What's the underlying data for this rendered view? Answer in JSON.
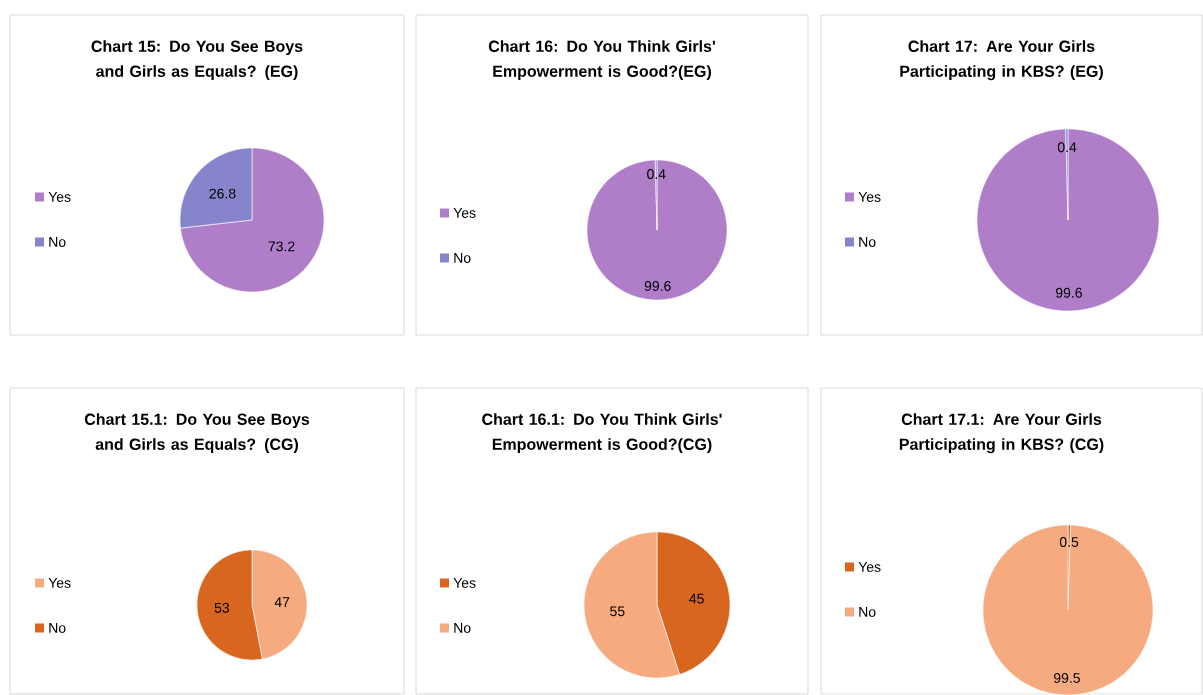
{
  "chart_data": [
    {
      "type": "pie",
      "title": "Chart 15: Do You See Boys and Girls as Equals? (EG)",
      "categories": [
        "Yes",
        "No"
      ],
      "values": [
        73.2,
        26.8
      ],
      "colors": [
        "#b07ec9",
        "#8685cc"
      ],
      "data_labels": true,
      "legend": "left"
    },
    {
      "type": "pie",
      "title": "Chart 16: Do You Think Girls' Empowerment is Good?(EG)",
      "categories": [
        "Yes",
        "No"
      ],
      "values": [
        99.6,
        0.4
      ],
      "colors": [
        "#b07ec9",
        "#8685cc"
      ],
      "data_labels": true,
      "legend": "left"
    },
    {
      "type": "pie",
      "title": "Chart 17: Are Your Girls Participating in KBS? (EG)",
      "categories": [
        "Yes",
        "No"
      ],
      "values": [
        99.6,
        0.4
      ],
      "colors": [
        "#b07ec9",
        "#8685cc"
      ],
      "data_labels": true,
      "legend": "left"
    },
    {
      "type": "pie",
      "title": "Chart 15.1: Do You See Boys and Girls as Equals? (CG)",
      "categories": [
        "Yes",
        "No"
      ],
      "values": [
        47,
        53
      ],
      "colors": [
        "#f5aa80",
        "#d9661f"
      ],
      "data_labels": true,
      "legend": "left"
    },
    {
      "type": "pie",
      "title": "Chart 16.1: Do You Think Girls' Empowerment is Good?(CG)",
      "categories": [
        "Yes",
        "No"
      ],
      "values": [
        45,
        55
      ],
      "colors": [
        "#d9661f",
        "#f5aa80"
      ],
      "data_labels": true,
      "legend": "left"
    },
    {
      "type": "pie",
      "title": "Chart 17.1: Are Your Girls Participating in KBS? (CG)",
      "categories": [
        "Yes",
        "No"
      ],
      "values": [
        0.5,
        99.5
      ],
      "colors": [
        "#d9661f",
        "#f5aa80"
      ],
      "data_labels": true,
      "legend": "left"
    }
  ]
}
